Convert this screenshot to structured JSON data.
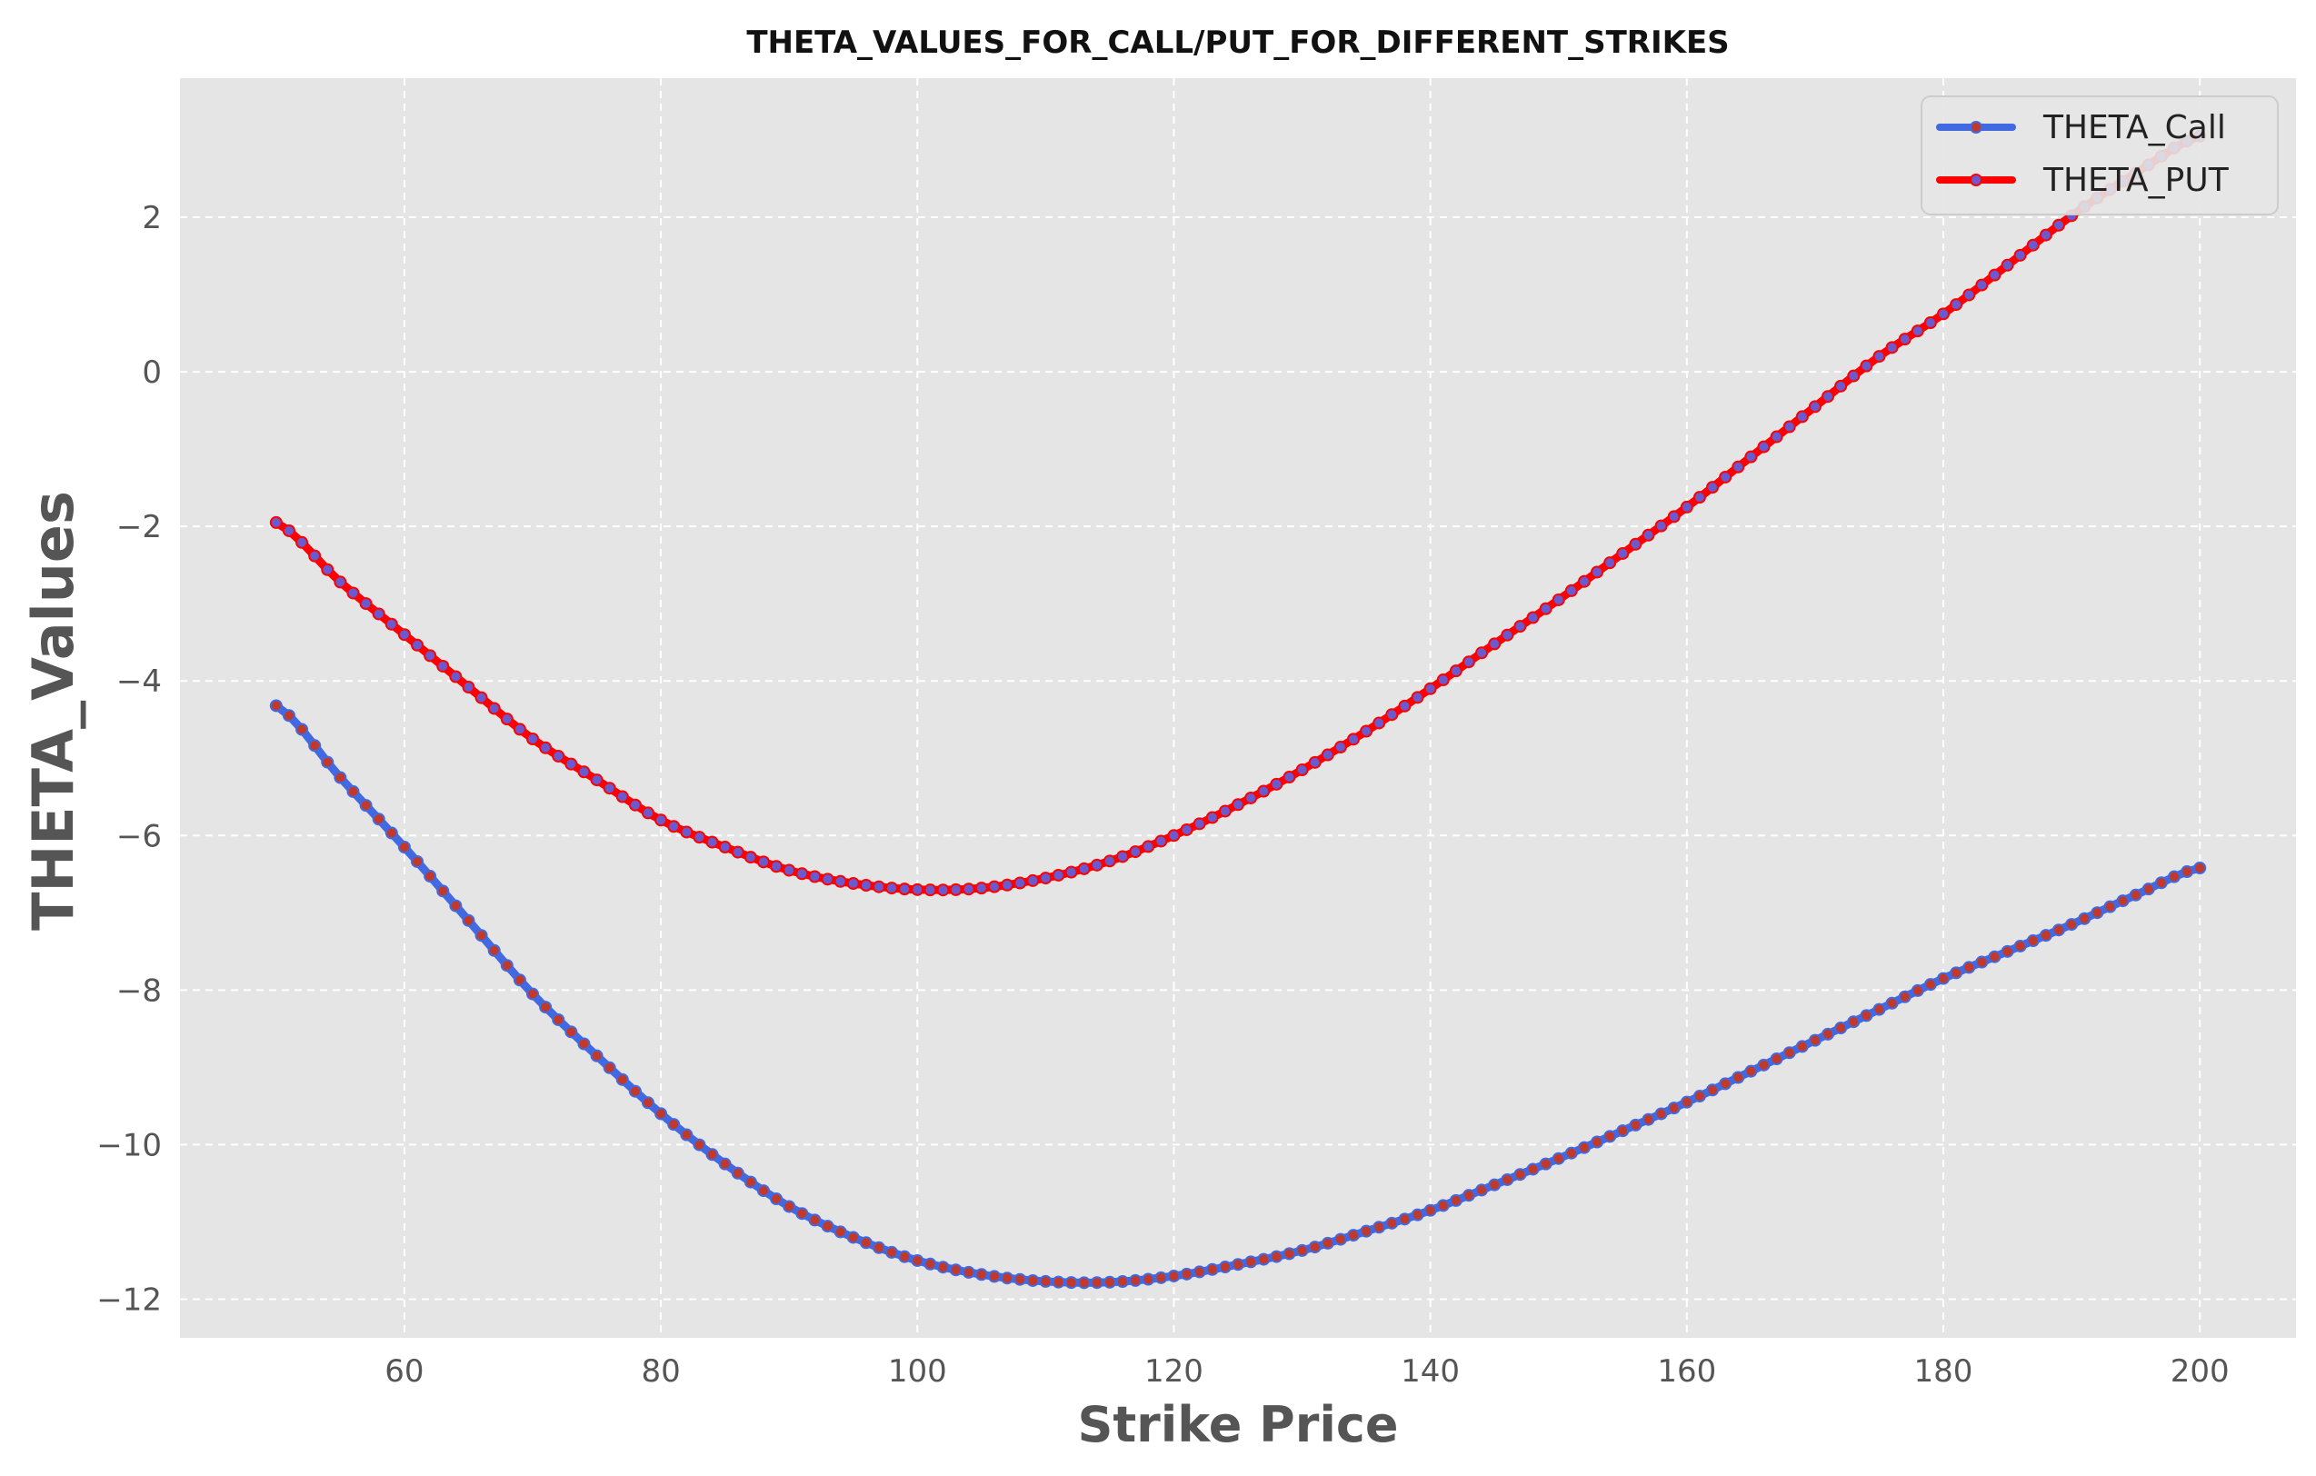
{
  "chart_data": {
    "type": "line",
    "title": "THETA_VALUES_FOR_CALL/PUT_FOR_DIFFERENT_STRIKES",
    "xlabel": "Strike Price",
    "ylabel": "THETA_Values",
    "xlim": [
      42.5,
      207.5
    ],
    "ylim": [
      -12.5,
      3.8
    ],
    "x_ticks": [
      60,
      80,
      100,
      120,
      140,
      160,
      180,
      200
    ],
    "y_ticks": [
      -12,
      -10,
      -8,
      -6,
      -4,
      -2,
      0,
      2
    ],
    "x_tick_labels": [
      "60",
      "80",
      "100",
      "120",
      "140",
      "160",
      "180",
      "200"
    ],
    "y_tick_labels": [
      "−12",
      "−10",
      "−8",
      "−6",
      "−4",
      "−2",
      "0",
      "2"
    ],
    "grid": true,
    "legend_position": "top-right",
    "x_range": {
      "start": 50,
      "end": 200,
      "step": 1
    },
    "series": [
      {
        "name": "THETA_Call",
        "color": "#4169E1",
        "marker_color": "#c0392b",
        "anchors": [
          [
            50,
            -4.32
          ],
          [
            55,
            -5.25
          ],
          [
            60,
            -6.15
          ],
          [
            65,
            -7.1
          ],
          [
            70,
            -8.05
          ],
          [
            75,
            -8.85
          ],
          [
            80,
            -9.6
          ],
          [
            85,
            -10.25
          ],
          [
            90,
            -10.8
          ],
          [
            95,
            -11.2
          ],
          [
            100,
            -11.5
          ],
          [
            105,
            -11.68
          ],
          [
            110,
            -11.77
          ],
          [
            115,
            -11.78
          ],
          [
            120,
            -11.7
          ],
          [
            125,
            -11.55
          ],
          [
            130,
            -11.37
          ],
          [
            135,
            -11.12
          ],
          [
            140,
            -10.85
          ],
          [
            145,
            -10.52
          ],
          [
            150,
            -10.18
          ],
          [
            155,
            -9.82
          ],
          [
            160,
            -9.45
          ],
          [
            165,
            -9.05
          ],
          [
            170,
            -8.65
          ],
          [
            175,
            -8.25
          ],
          [
            180,
            -7.85
          ],
          [
            185,
            -7.5
          ],
          [
            190,
            -7.15
          ],
          [
            195,
            -6.77
          ],
          [
            200,
            -6.42
          ]
        ]
      },
      {
        "name": "THETA_PUT",
        "color": "#ff0000",
        "marker_color": "#6a5acd",
        "anchors": [
          [
            50,
            -1.95
          ],
          [
            55,
            -2.72
          ],
          [
            60,
            -3.4
          ],
          [
            65,
            -4.08
          ],
          [
            70,
            -4.75
          ],
          [
            75,
            -5.28
          ],
          [
            80,
            -5.8
          ],
          [
            85,
            -6.15
          ],
          [
            90,
            -6.45
          ],
          [
            95,
            -6.62
          ],
          [
            100,
            -6.7
          ],
          [
            105,
            -6.68
          ],
          [
            110,
            -6.55
          ],
          [
            115,
            -6.33
          ],
          [
            120,
            -6.0
          ],
          [
            125,
            -5.6
          ],
          [
            130,
            -5.15
          ],
          [
            135,
            -4.65
          ],
          [
            140,
            -4.1
          ],
          [
            145,
            -3.52
          ],
          [
            150,
            -2.95
          ],
          [
            155,
            -2.35
          ],
          [
            160,
            -1.75
          ],
          [
            165,
            -1.1
          ],
          [
            170,
            -0.45
          ],
          [
            175,
            0.2
          ],
          [
            180,
            0.75
          ],
          [
            185,
            1.38
          ],
          [
            190,
            2.02
          ],
          [
            195,
            2.57
          ],
          [
            200,
            3.05
          ]
        ]
      }
    ]
  }
}
